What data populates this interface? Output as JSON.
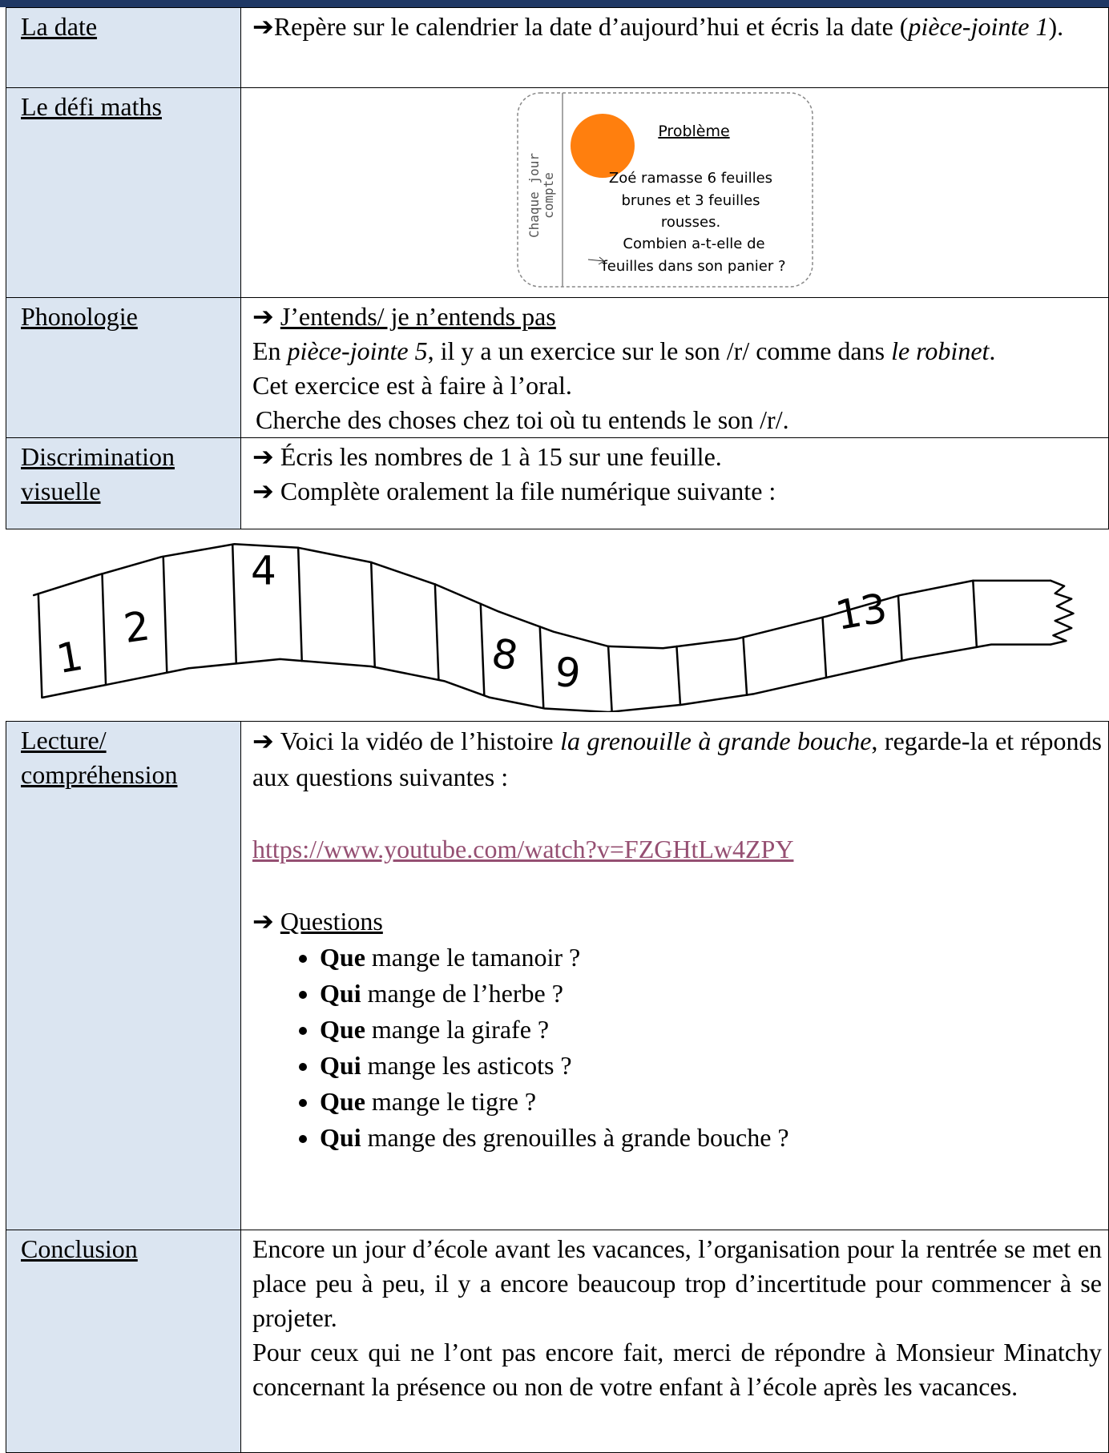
{
  "arrow": "➔",
  "rows": [
    {
      "label": "La date",
      "parts": [
        "Repère sur le calendrier la date d’aujourd’hui et écris la date (",
        "pièce-jointe 1",
        ")."
      ]
    },
    {
      "label": "Le défi maths",
      "card": {
        "side": [
          "Chaque jour",
          "compte"
        ],
        "heading": "Problème",
        "lines": [
          "Zoé ramasse 6 feuilles",
          "brunes et 3 feuilles",
          "rousses.",
          "Combien a-t-elle de",
          "feuilles dans son panier ?"
        ]
      }
    },
    {
      "label": "Phonologie",
      "title": "J’entends/ je n’entends pas",
      "parts": [
        "En ",
        "pièce-jointe 5",
        ", il y a un exercice sur le son /r/ comme dans ",
        "le robinet",
        "."
      ],
      "lines": [
        "Cet exercice est à faire à l’oral.",
        "Cherche des choses chez toi où tu entends le son /r/."
      ]
    },
    {
      "label": [
        "Discrimination",
        "visuelle"
      ],
      "items": [
        "Écris les nombres de 1 à 15 sur une feuille.",
        "Complète oralement la file numérique suivante :"
      ],
      "strip": [
        "1",
        "2",
        "4",
        "8",
        "9",
        "13"
      ]
    },
    {
      "label": [
        "Lecture/",
        "compréhension"
      ],
      "parts": [
        "Voici la vidéo de l’histoire ",
        "la grenouille à grande bouche",
        ", regarde-la et réponds aux questions suivantes :"
      ],
      "link": "https://www.youtube.com/watch?v=FZGHtLw4ZPY",
      "title": "Questions",
      "questions": [
        [
          "Que",
          " mange le tamanoir ?"
        ],
        [
          "Qui",
          " mange de l’herbe ?"
        ],
        [
          "Que",
          " mange la girafe ?"
        ],
        [
          "Qui",
          " mange les asticots ?"
        ],
        [
          "Que",
          " mange le tigre ?"
        ],
        [
          "Qui",
          " mange des grenouilles à grande bouche ?"
        ]
      ]
    },
    {
      "label": "Conclusion",
      "paragraphs": [
        "Encore un jour d’école avant les vacances, l’organisation pour la rentrée se met en place peu à peu, il y a encore beaucoup trop d’incertitude pour commencer à se projeter.",
        "Pour ceux qui ne l’ont pas encore fait, merci de répondre à Monsieur Minatchy concernant la présence ou non de votre enfant à l’école après les vacances."
      ]
    }
  ]
}
